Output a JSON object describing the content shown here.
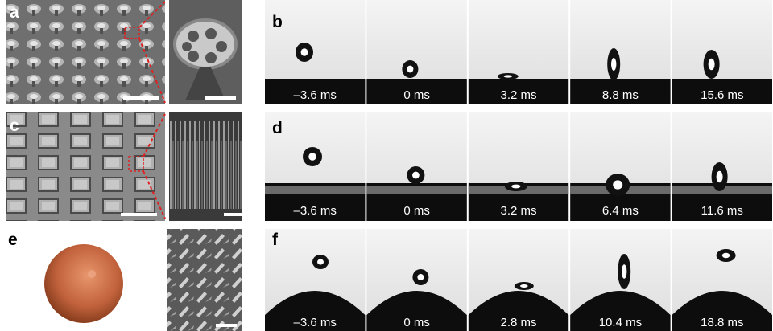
{
  "panels": [
    {
      "label": "a"
    },
    {
      "label": "b",
      "frames": [
        "–3.6 ms",
        "0 ms",
        "3.2 ms",
        "8.8 ms",
        "15.6 ms"
      ]
    },
    {
      "label": "c"
    },
    {
      "label": "d",
      "frames": [
        "–3.6 ms",
        "0 ms",
        "3.2 ms",
        "6.4 ms",
        "11.6 ms"
      ]
    },
    {
      "label": "e"
    },
    {
      "label": "f",
      "frames": [
        "–3.6 ms",
        "0 ms",
        "2.8 ms",
        "10.4 ms",
        "18.8 ms"
      ]
    }
  ]
}
